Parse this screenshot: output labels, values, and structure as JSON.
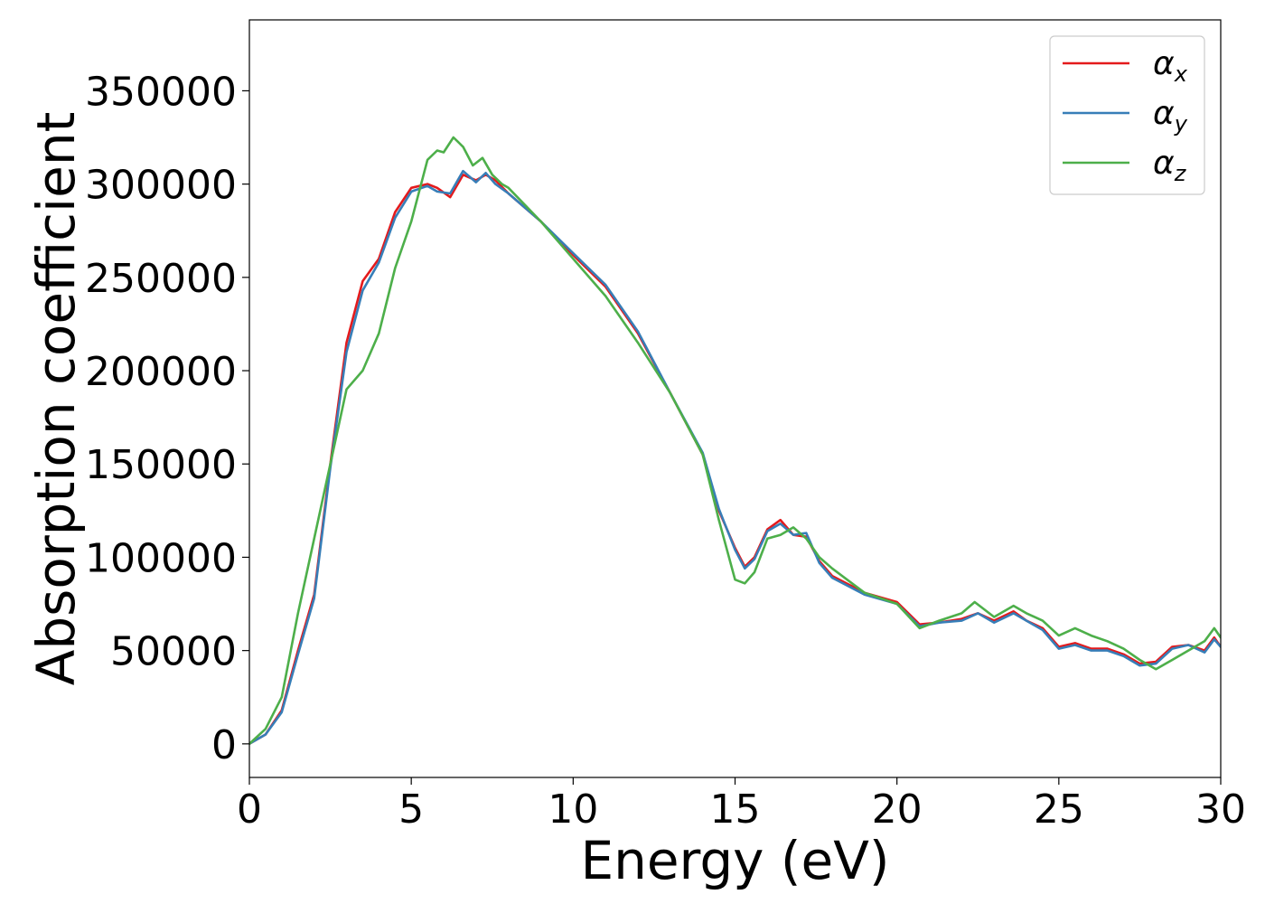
{
  "chart_data": {
    "type": "line",
    "title": "",
    "xlabel": "Energy (eV)",
    "ylabel": "Absorption coefficient",
    "xlim": [
      0,
      30
    ],
    "ylim": [
      -18000,
      388000
    ],
    "xticks": [
      0,
      5,
      10,
      15,
      20,
      25,
      30
    ],
    "yticks": [
      0,
      50000,
      100000,
      150000,
      200000,
      250000,
      300000,
      350000
    ],
    "grid": false,
    "legend_position": "top-right",
    "series": [
      {
        "name": "αx",
        "legend_base": "α",
        "legend_sub": "x",
        "color": "#e41a1c",
        "x": [
          0,
          0.5,
          1,
          1.5,
          2,
          2.5,
          3,
          3.5,
          4,
          4.5,
          5,
          5.5,
          5.8,
          6.2,
          6.6,
          7.0,
          7.3,
          7.6,
          8,
          9,
          10,
          11,
          12,
          13,
          14,
          14.5,
          15,
          15.3,
          15.6,
          16.0,
          16.4,
          16.8,
          17.2,
          17.6,
          18,
          19,
          20,
          20.7,
          21.3,
          22,
          22.5,
          23,
          23.6,
          24,
          24.5,
          25,
          25.5,
          26,
          26.5,
          27,
          27.5,
          28,
          28.5,
          29,
          29.5,
          29.8,
          30
        ],
        "y": [
          0,
          5000,
          18000,
          50000,
          80000,
          150000,
          215000,
          248000,
          260000,
          285000,
          298000,
          300000,
          298000,
          293000,
          305000,
          302000,
          305000,
          302000,
          295000,
          280000,
          262000,
          245000,
          220000,
          188000,
          155000,
          125000,
          105000,
          95000,
          100000,
          115000,
          120000,
          112000,
          111000,
          98000,
          90000,
          81000,
          76000,
          64000,
          65000,
          67000,
          70000,
          66000,
          71000,
          66000,
          62000,
          52000,
          54000,
          51000,
          51000,
          48000,
          43000,
          44000,
          52000,
          53000,
          50000,
          57000,
          52000
        ]
      },
      {
        "name": "αy",
        "legend_base": "α",
        "legend_sub": "y",
        "color": "#377eb8",
        "x": [
          0,
          0.5,
          1,
          1.5,
          2,
          2.5,
          3,
          3.5,
          4,
          4.5,
          5,
          5.5,
          5.8,
          6.2,
          6.6,
          7.0,
          7.3,
          7.6,
          8,
          9,
          10,
          11,
          12,
          13,
          14,
          14.5,
          15,
          15.3,
          15.6,
          16.0,
          16.4,
          16.8,
          17.2,
          17.6,
          18,
          19,
          20,
          20.7,
          21.3,
          22,
          22.5,
          23,
          23.6,
          24,
          24.5,
          25,
          25.5,
          26,
          26.5,
          27,
          27.5,
          28,
          28.5,
          29,
          29.5,
          29.8,
          30
        ],
        "y": [
          0,
          5000,
          17000,
          48000,
          78000,
          148000,
          210000,
          243000,
          258000,
          282000,
          296000,
          299000,
          296000,
          295000,
          307000,
          301000,
          306000,
          300000,
          295000,
          280000,
          263000,
          246000,
          221000,
          188000,
          156000,
          126000,
          104000,
          94000,
          99000,
          114000,
          118000,
          112000,
          113000,
          97000,
          89000,
          80000,
          75000,
          63000,
          65000,
          66000,
          70000,
          65000,
          70000,
          66000,
          61000,
          51000,
          53000,
          50000,
          50000,
          47000,
          42000,
          43000,
          51000,
          53000,
          49000,
          56000,
          52000
        ]
      },
      {
        "name": "αz",
        "legend_base": "α",
        "legend_sub": "z",
        "color": "#4daf4a",
        "x": [
          0,
          0.5,
          1,
          1.5,
          2,
          2.5,
          3,
          3.5,
          4,
          4.5,
          5,
          5.5,
          5.8,
          6.0,
          6.3,
          6.6,
          6.9,
          7.2,
          7.5,
          7.8,
          8,
          9,
          10,
          11,
          12,
          13,
          14,
          14.5,
          15,
          15.3,
          15.6,
          16.0,
          16.4,
          16.8,
          17.2,
          17.6,
          18,
          19,
          20,
          20.7,
          21.3,
          22,
          22.4,
          23,
          23.6,
          24,
          24.5,
          25,
          25.5,
          26,
          26.5,
          27,
          27.5,
          28,
          28.5,
          29,
          29.5,
          29.8,
          30
        ],
        "y": [
          0,
          8000,
          25000,
          70000,
          110000,
          150000,
          190000,
          200000,
          220000,
          255000,
          280000,
          313000,
          318000,
          317000,
          325000,
          320000,
          310000,
          314000,
          305000,
          300000,
          298000,
          280000,
          260000,
          240000,
          215000,
          188000,
          155000,
          120000,
          88000,
          86000,
          92000,
          110000,
          112000,
          116000,
          110000,
          100000,
          94000,
          81000,
          75000,
          62000,
          66000,
          70000,
          76000,
          68000,
          74000,
          70000,
          66000,
          58000,
          62000,
          58000,
          55000,
          51000,
          45000,
          40000,
          45000,
          50000,
          55000,
          62000,
          57000
        ]
      }
    ]
  }
}
